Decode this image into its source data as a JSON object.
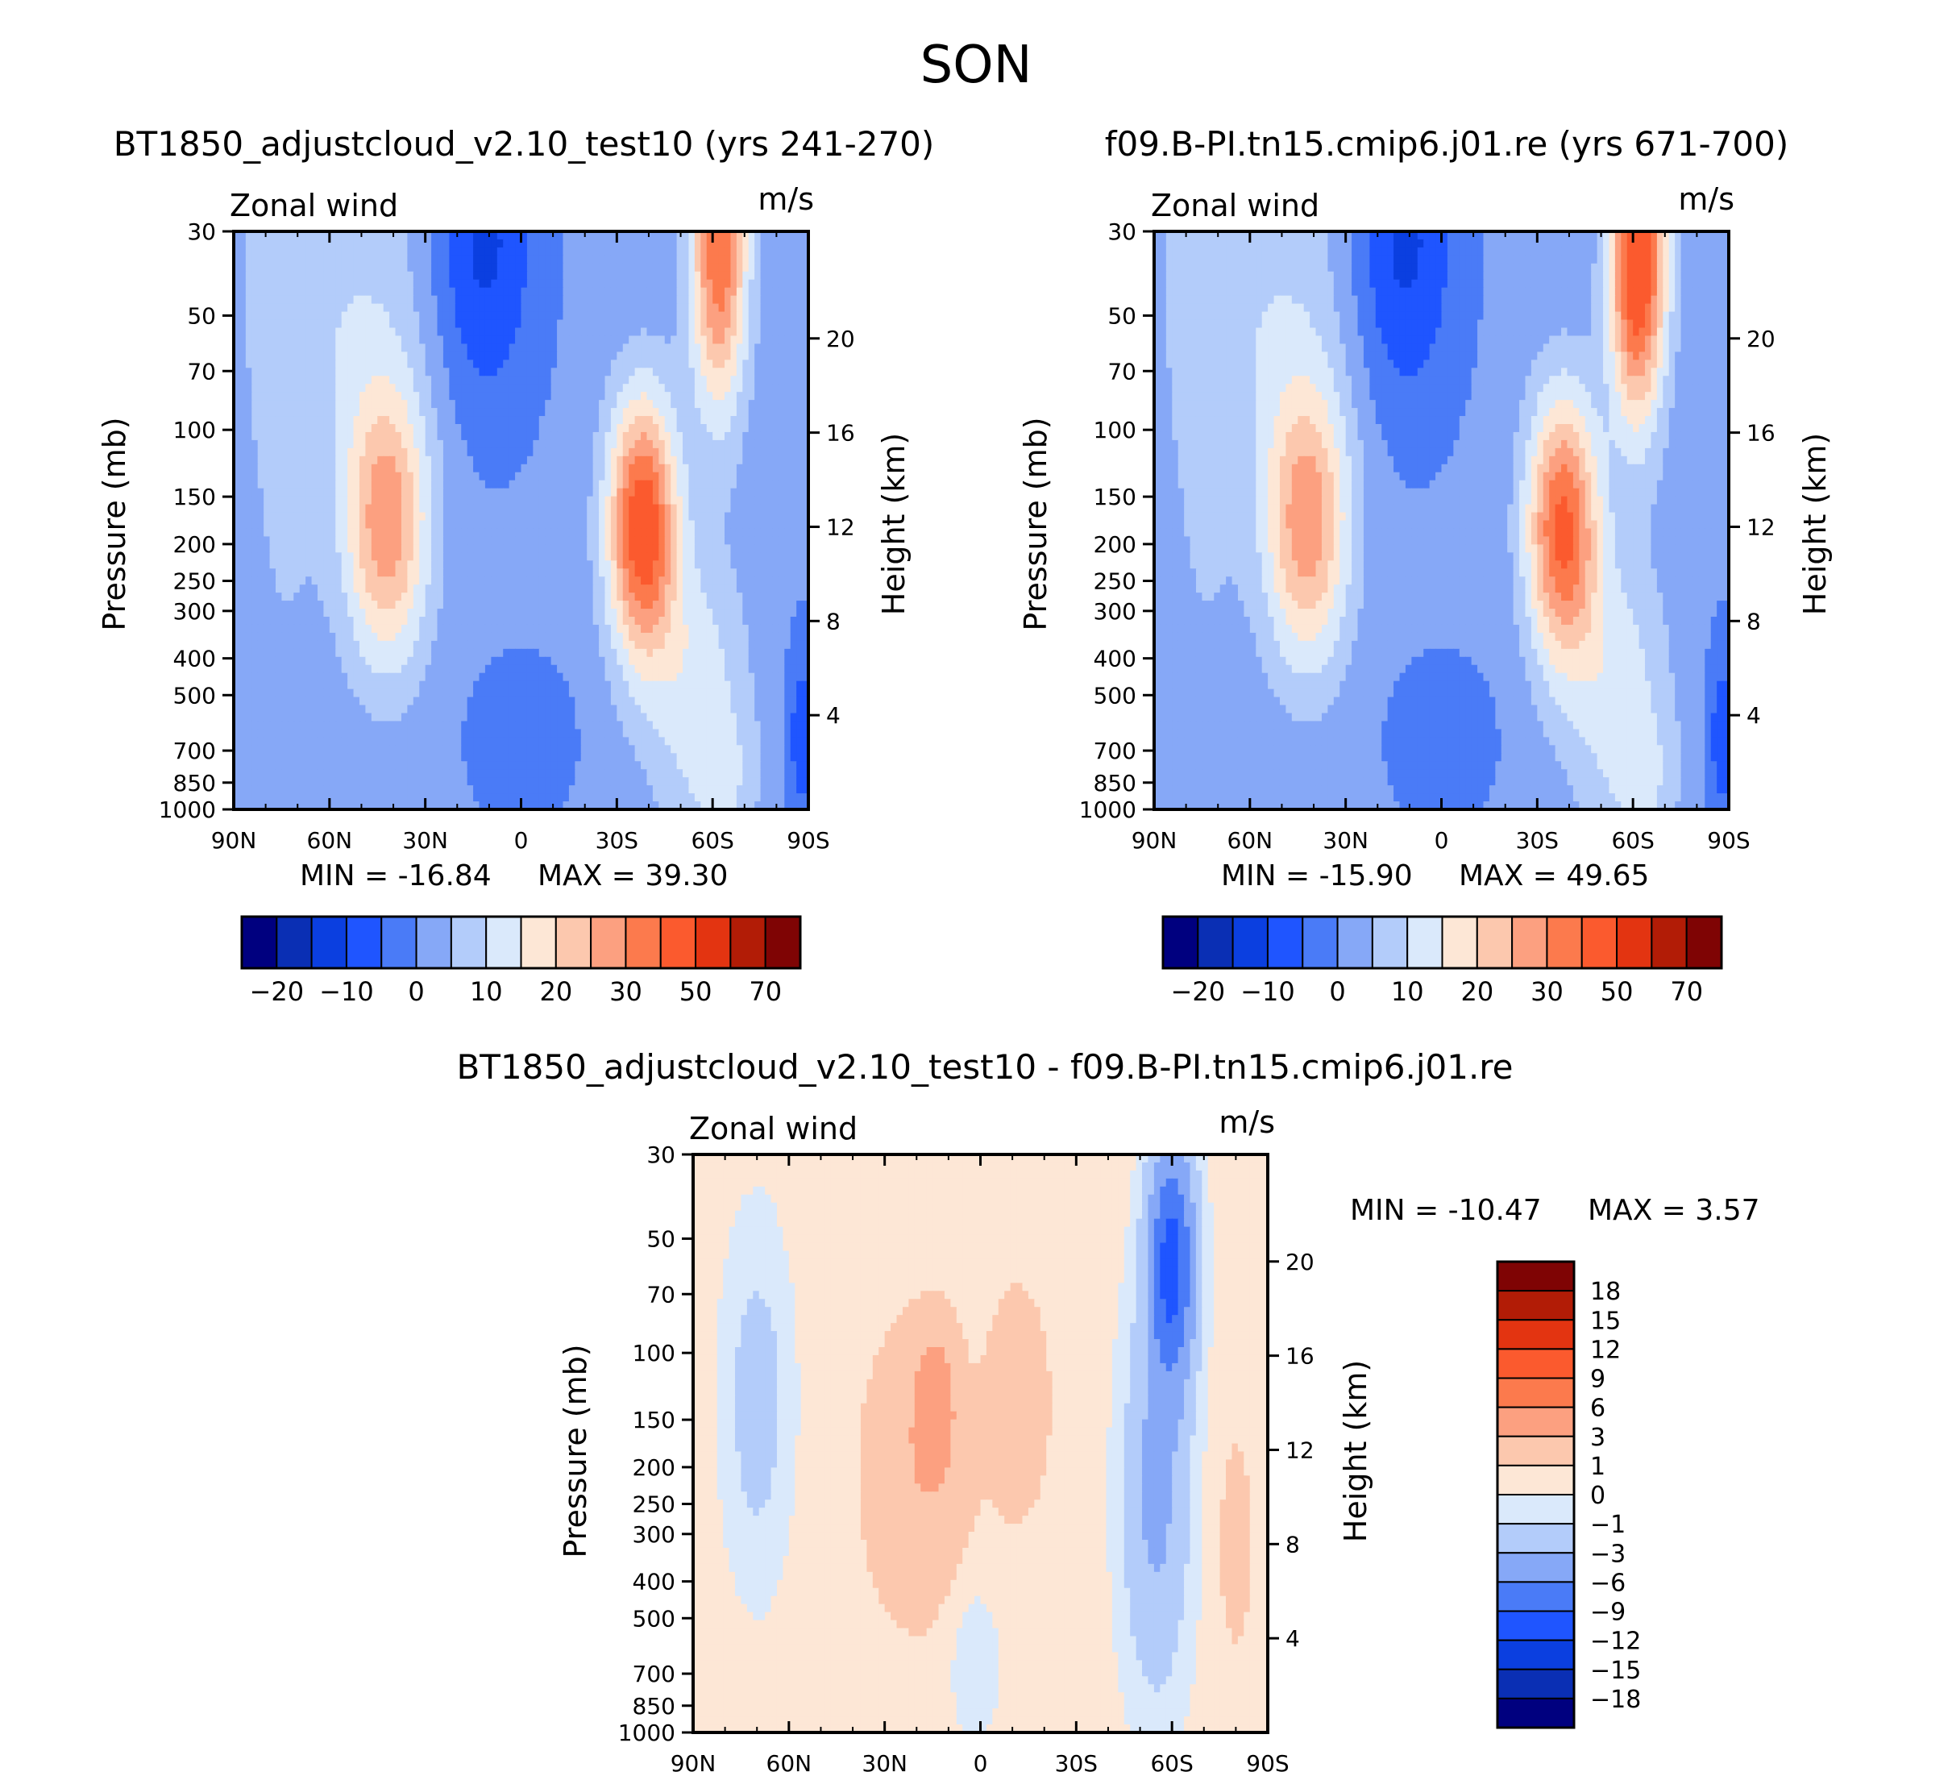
{
  "page_title": "SON",
  "colors": {
    "main_scale": [
      "#00007f",
      "#0a2fb4",
      "#0b3fe0",
      "#1f55ff",
      "#4a7bf7",
      "#86a8f7",
      "#b3ccfa",
      "#dae9fb",
      "#fde7d6",
      "#fcc8ae",
      "#fca080",
      "#fc7a4d",
      "#fb5a2e",
      "#e33411",
      "#b21c06",
      "#7f0404"
    ],
    "diff_scale": [
      "#00007f",
      "#0a2fb4",
      "#0b3fe0",
      "#1f55ff",
      "#4a7bf7",
      "#86a8f7",
      "#b3ccfa",
      "#dae9fb",
      "#fde7d6",
      "#fcc8ae",
      "#fca080",
      "#fc7a4d",
      "#fb5a2e",
      "#e33411",
      "#b21c06",
      "#7f0404"
    ]
  },
  "chart_data": [
    {
      "type": "heatmap",
      "panel": "case",
      "title": "BT1850_adjustcloud_v2.10_test10 (yrs 241-270)",
      "left_label": "Zonal wind",
      "right_label": "m/s",
      "ylabel": "Pressure (mb)",
      "ylabel_right": "Height (km)",
      "x_ticks": [
        "90N",
        "60N",
        "30N",
        "0",
        "30S",
        "60S",
        "90S"
      ],
      "x_range": [
        90,
        -90
      ],
      "y_ticks": [
        30,
        50,
        70,
        100,
        150,
        200,
        250,
        300,
        400,
        500,
        700,
        850,
        1000
      ],
      "y_range": [
        30,
        1000
      ],
      "y_right_ticks": [
        20,
        16,
        12,
        8,
        4
      ],
      "min_label": "MIN = -16.84",
      "max_label": "MAX = 39.30",
      "min": -16.84,
      "max": 39.3,
      "colorbar_labels": [
        "-20",
        "-10",
        "0",
        "10",
        "20",
        "30",
        "50",
        "70"
      ],
      "jets": [
        {
          "lat": -38,
          "pressure": 200,
          "peak": 39.3
        },
        {
          "lat": 42,
          "pressure": 200,
          "peak": 24
        },
        {
          "lat": -62,
          "pressure": 40,
          "peak": 36
        },
        {
          "lat": 14,
          "pressure": 30,
          "peak": -16.84
        }
      ]
    },
    {
      "type": "heatmap",
      "panel": "control",
      "title": "f09.B-PI.tn15.cmip6.j01.re (yrs 671-700)",
      "left_label": "Zonal wind",
      "right_label": "m/s",
      "ylabel": "Pressure (mb)",
      "ylabel_right": "Height (km)",
      "x_ticks": [
        "90N",
        "60N",
        "30N",
        "0",
        "30S",
        "60S",
        "90S"
      ],
      "x_range": [
        90,
        -90
      ],
      "y_ticks": [
        30,
        50,
        70,
        100,
        150,
        200,
        250,
        300,
        400,
        500,
        700,
        850,
        1000
      ],
      "y_range": [
        30,
        1000
      ],
      "y_right_ticks": [
        20,
        16,
        12,
        8,
        4
      ],
      "min_label": "MIN = -15.90",
      "max_label": "MAX = 49.65",
      "min": -15.9,
      "max": 49.65,
      "colorbar_labels": [
        "-20",
        "-10",
        "0",
        "10",
        "20",
        "30",
        "50",
        "70"
      ],
      "jets": [
        {
          "lat": -40,
          "pressure": 200,
          "peak": 36
        },
        {
          "lat": 42,
          "pressure": 200,
          "peak": 24
        },
        {
          "lat": -60,
          "pressure": 30,
          "peak": 49.65
        },
        {
          "lat": 15,
          "pressure": 30,
          "peak": -15.9
        }
      ]
    },
    {
      "type": "heatmap",
      "panel": "difference",
      "title": "BT1850_adjustcloud_v2.10_test10 - f09.B-PI.tn15.cmip6.j01.re",
      "left_label": "Zonal wind",
      "right_label": "m/s",
      "ylabel": "Pressure (mb)",
      "ylabel_right": "Height (km)",
      "x_ticks": [
        "90N",
        "60N",
        "30N",
        "0",
        "30S",
        "60S",
        "90S"
      ],
      "x_range": [
        90,
        -90
      ],
      "y_ticks": [
        30,
        50,
        70,
        100,
        150,
        200,
        250,
        300,
        400,
        500,
        700,
        850,
        1000
      ],
      "y_range": [
        30,
        1000
      ],
      "y_right_ticks": [
        20,
        16,
        12,
        8,
        4
      ],
      "min_label": "MIN = -10.47",
      "max_label": "MAX = 3.57",
      "min": -10.47,
      "max": 3.57,
      "colorbar_labels": [
        "18",
        "15",
        "12",
        "9",
        "6",
        "3",
        "1",
        "0",
        "-1",
        "-3",
        "-6",
        "-9",
        "-12",
        "-15",
        "-18"
      ],
      "features": [
        {
          "lat": -60,
          "pressure": 40,
          "value": -10.47
        },
        {
          "lat": 15,
          "pressure": 160,
          "value": 3.57
        }
      ]
    }
  ]
}
